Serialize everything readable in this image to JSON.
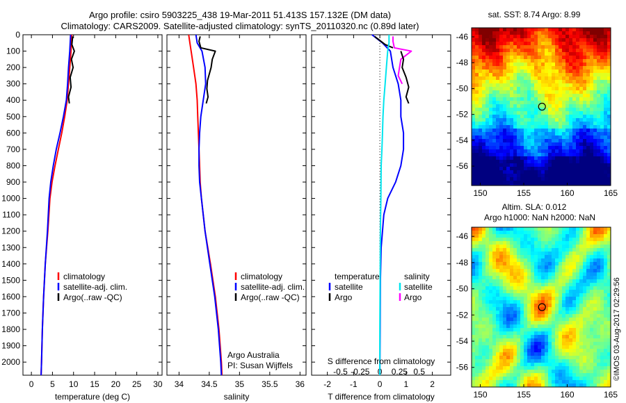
{
  "header": {
    "line1": "Argo profile: csiro 5903225_438 19-Mar-2011 51.413S 157.132E (DM data)",
    "line2": "Climatology: CARS2009. Satellite-adjusted climatology: synTS_20110320.nc (0.89d later)"
  },
  "colors": {
    "climatology": "#ff0000",
    "satellite": "#0000ff",
    "argo": "#000000",
    "satellite_salinity": "#00e5ee",
    "argo_salinity": "#ff00ff"
  },
  "credits": {
    "org": "Argo Australia",
    "pi": "PI: Susan Wijffels",
    "stamp": "©IMOS 03-Aug-2017 02:29:56"
  },
  "chart_data": [
    {
      "id": "temperature",
      "type": "line",
      "xlabel": "temperature (deg C)",
      "xlim": [
        -2,
        31
      ],
      "xticks": [
        0,
        5,
        10,
        15,
        20,
        25,
        30
      ],
      "ylim": [
        2080,
        0
      ],
      "yticks": [
        0,
        100,
        200,
        300,
        400,
        500,
        600,
        700,
        800,
        900,
        1000,
        1100,
        1200,
        1300,
        1400,
        1500,
        1600,
        1700,
        1800,
        1900,
        2000
      ],
      "legend": [
        "climatology",
        "satellite-adj. clim.",
        "Argo(..raw -QC)"
      ],
      "series": [
        {
          "name": "climatology",
          "color": "climatology",
          "points": [
            [
              9.6,
              0
            ],
            [
              9.4,
              100
            ],
            [
              9.1,
              200
            ],
            [
              8.8,
              300
            ],
            [
              8.5,
              400
            ],
            [
              7.9,
              500
            ],
            [
              7.2,
              600
            ],
            [
              6.4,
              700
            ],
            [
              5.6,
              800
            ],
            [
              4.9,
              900
            ],
            [
              4.4,
              1000
            ],
            [
              3.9,
              1200
            ],
            [
              3.3,
              1400
            ],
            [
              2.9,
              1600
            ],
            [
              2.6,
              1800
            ],
            [
              2.4,
              2000
            ],
            [
              2.3,
              2080
            ]
          ]
        },
        {
          "name": "satellite-adj. clim.",
          "color": "satellite",
          "points": [
            [
              9.3,
              0
            ],
            [
              9.1,
              100
            ],
            [
              8.8,
              200
            ],
            [
              8.6,
              300
            ],
            [
              8.3,
              400
            ],
            [
              7.6,
              500
            ],
            [
              6.8,
              600
            ],
            [
              5.9,
              700
            ],
            [
              5.2,
              800
            ],
            [
              4.6,
              900
            ],
            [
              4.2,
              1000
            ],
            [
              3.8,
              1200
            ],
            [
              3.3,
              1400
            ],
            [
              2.9,
              1600
            ],
            [
              2.6,
              1800
            ],
            [
              2.4,
              2000
            ],
            [
              2.3,
              2080
            ]
          ]
        },
        {
          "name": "Argo(..raw -QC)",
          "color": "argo",
          "points": [
            [
              9.8,
              10
            ],
            [
              9.6,
              60
            ],
            [
              10.2,
              100
            ],
            [
              9.5,
              150
            ],
            [
              9.9,
              200
            ],
            [
              9.2,
              260
            ],
            [
              9.4,
              320
            ],
            [
              8.8,
              380
            ],
            [
              9.0,
              420
            ]
          ]
        }
      ]
    },
    {
      "id": "salinity",
      "type": "line",
      "xlabel": "salinity",
      "xlim": [
        33.8,
        36.1
      ],
      "xticks": [
        34,
        34.5,
        35,
        35.5,
        36
      ],
      "ylim": [
        2080,
        0
      ],
      "legend": [
        "climatology",
        "satellite-adj. clim.",
        "Argo(..raw -QC)"
      ],
      "series": [
        {
          "name": "climatology",
          "color": "climatology",
          "points": [
            [
              34.16,
              0
            ],
            [
              34.18,
              50
            ],
            [
              34.2,
              100
            ],
            [
              34.24,
              200
            ],
            [
              34.28,
              300
            ],
            [
              34.3,
              400
            ],
            [
              34.31,
              500
            ],
            [
              34.32,
              600
            ],
            [
              34.33,
              700
            ],
            [
              34.34,
              800
            ],
            [
              34.35,
              900
            ],
            [
              34.37,
              1000
            ],
            [
              34.43,
              1200
            ],
            [
              34.52,
              1400
            ],
            [
              34.6,
              1600
            ],
            [
              34.66,
              1800
            ],
            [
              34.7,
              2000
            ],
            [
              34.71,
              2080
            ]
          ]
        },
        {
          "name": "satellite-adj. clim.",
          "color": "satellite",
          "points": [
            [
              34.28,
              0
            ],
            [
              34.3,
              50
            ],
            [
              34.38,
              100
            ],
            [
              34.43,
              200
            ],
            [
              34.44,
              300
            ],
            [
              34.4,
              400
            ],
            [
              34.36,
              500
            ],
            [
              34.34,
              600
            ],
            [
              34.33,
              700
            ],
            [
              34.33,
              800
            ],
            [
              34.34,
              900
            ],
            [
              34.37,
              1000
            ],
            [
              34.43,
              1200
            ],
            [
              34.51,
              1400
            ],
            [
              34.59,
              1600
            ],
            [
              34.65,
              1800
            ],
            [
              34.69,
              2000
            ],
            [
              34.7,
              2080
            ]
          ]
        },
        {
          "name": "Argo(..raw -QC)",
          "color": "argo",
          "points": [
            [
              34.35,
              10
            ],
            [
              34.33,
              40
            ],
            [
              34.36,
              80
            ],
            [
              34.6,
              100
            ],
            [
              34.55,
              150
            ],
            [
              34.53,
              200
            ],
            [
              34.47,
              280
            ],
            [
              34.46,
              330
            ],
            [
              34.48,
              380
            ],
            [
              34.45,
              420
            ]
          ]
        }
      ]
    },
    {
      "id": "difference",
      "type": "line",
      "xlabel": "T difference from climatology",
      "xlabel_top": "S difference from climatology",
      "xlim": [
        -2.6,
        2.7
      ],
      "xticks": [
        -2,
        -1,
        0,
        1,
        2
      ],
      "sxticks": [
        "-0.5",
        "-0.25",
        "0",
        "0.25",
        "0.5"
      ],
      "ylim": [
        2080,
        0
      ],
      "legend_headers": [
        "temperature",
        "salinity"
      ],
      "legend": [
        "satellite",
        "Argo",
        "satellite",
        "Argo"
      ],
      "series": [
        {
          "name": "satellite",
          "color": "satellite",
          "points": [
            [
              -0.3,
              0
            ],
            [
              0.1,
              50
            ],
            [
              0.4,
              100
            ],
            [
              0.5,
              200
            ],
            [
              0.7,
              300
            ],
            [
              0.8,
              400
            ],
            [
              0.8,
              500
            ],
            [
              0.9,
              600
            ],
            [
              0.9,
              700
            ],
            [
              0.8,
              800
            ],
            [
              0.6,
              900
            ],
            [
              0.3,
              1000
            ],
            [
              0.15,
              1100
            ],
            [
              0.05,
              1300
            ],
            [
              0.02,
              1500
            ],
            [
              0.01,
              1800
            ],
            [
              0.0,
              2080
            ]
          ]
        },
        {
          "name": "Argo",
          "color": "argo",
          "points": [
            [
              -0.2,
              10
            ],
            [
              0.2,
              60
            ],
            [
              0.5,
              80
            ]
          ]
        },
        {
          "name": "satellite",
          "color": "satellite_salinity",
          "points": [
            [
              0.35,
              0
            ],
            [
              0.35,
              50
            ],
            [
              0.3,
              100
            ],
            [
              0.25,
              200
            ],
            [
              0.2,
              300
            ],
            [
              0.15,
              400
            ],
            [
              0.12,
              500
            ],
            [
              0.1,
              600
            ],
            [
              0.08,
              700
            ],
            [
              0.05,
              800
            ],
            [
              0.04,
              1000
            ],
            [
              0.02,
              1200
            ],
            [
              0.01,
              1500
            ],
            [
              0.0,
              1800
            ],
            [
              0.0,
              2080
            ]
          ]
        },
        {
          "name": "Argo",
          "color": "argo_salinity",
          "points": [
            [
              0.5,
              10
            ],
            [
              0.5,
              40
            ],
            [
              0.55,
              80
            ],
            [
              1.2,
              100
            ],
            [
              0.8,
              150
            ],
            [
              0.75,
              200
            ],
            [
              0.7,
              250
            ],
            [
              0.85,
              300
            ]
          ]
        },
        {
          "name": "Argo",
          "color": "argo",
          "points": [
            [
              0.8,
              100
            ],
            [
              0.9,
              150
            ],
            [
              0.85,
              200
            ],
            [
              1.0,
              260
            ],
            [
              1.1,
              320
            ],
            [
              1.0,
              380
            ],
            [
              1.1,
              420
            ]
          ]
        }
      ]
    },
    {
      "id": "sst_map",
      "type": "heatmap",
      "title": "sat. SST: 8.74 Argo: 8.99",
      "xlim": [
        149,
        165
      ],
      "ylim": [
        -57.5,
        -45.3
      ],
      "xticks": [
        150,
        155,
        160,
        165
      ],
      "yticks": [
        -46,
        -48,
        -50,
        -52,
        -54,
        -56
      ],
      "marker": [
        157.1,
        -51.4
      ]
    },
    {
      "id": "sla_map",
      "type": "heatmap",
      "title": "Altim. SLA: 0.012",
      "subtitle": "Argo h1000: NaN h2000: NaN",
      "xlim": [
        149,
        165
      ],
      "ylim": [
        -57.5,
        -45.3
      ],
      "xticks": [
        150,
        155,
        160,
        165
      ],
      "yticks": [
        -46,
        -48,
        -50,
        -52,
        -54,
        -56
      ],
      "marker": [
        157.1,
        -51.4
      ]
    }
  ]
}
